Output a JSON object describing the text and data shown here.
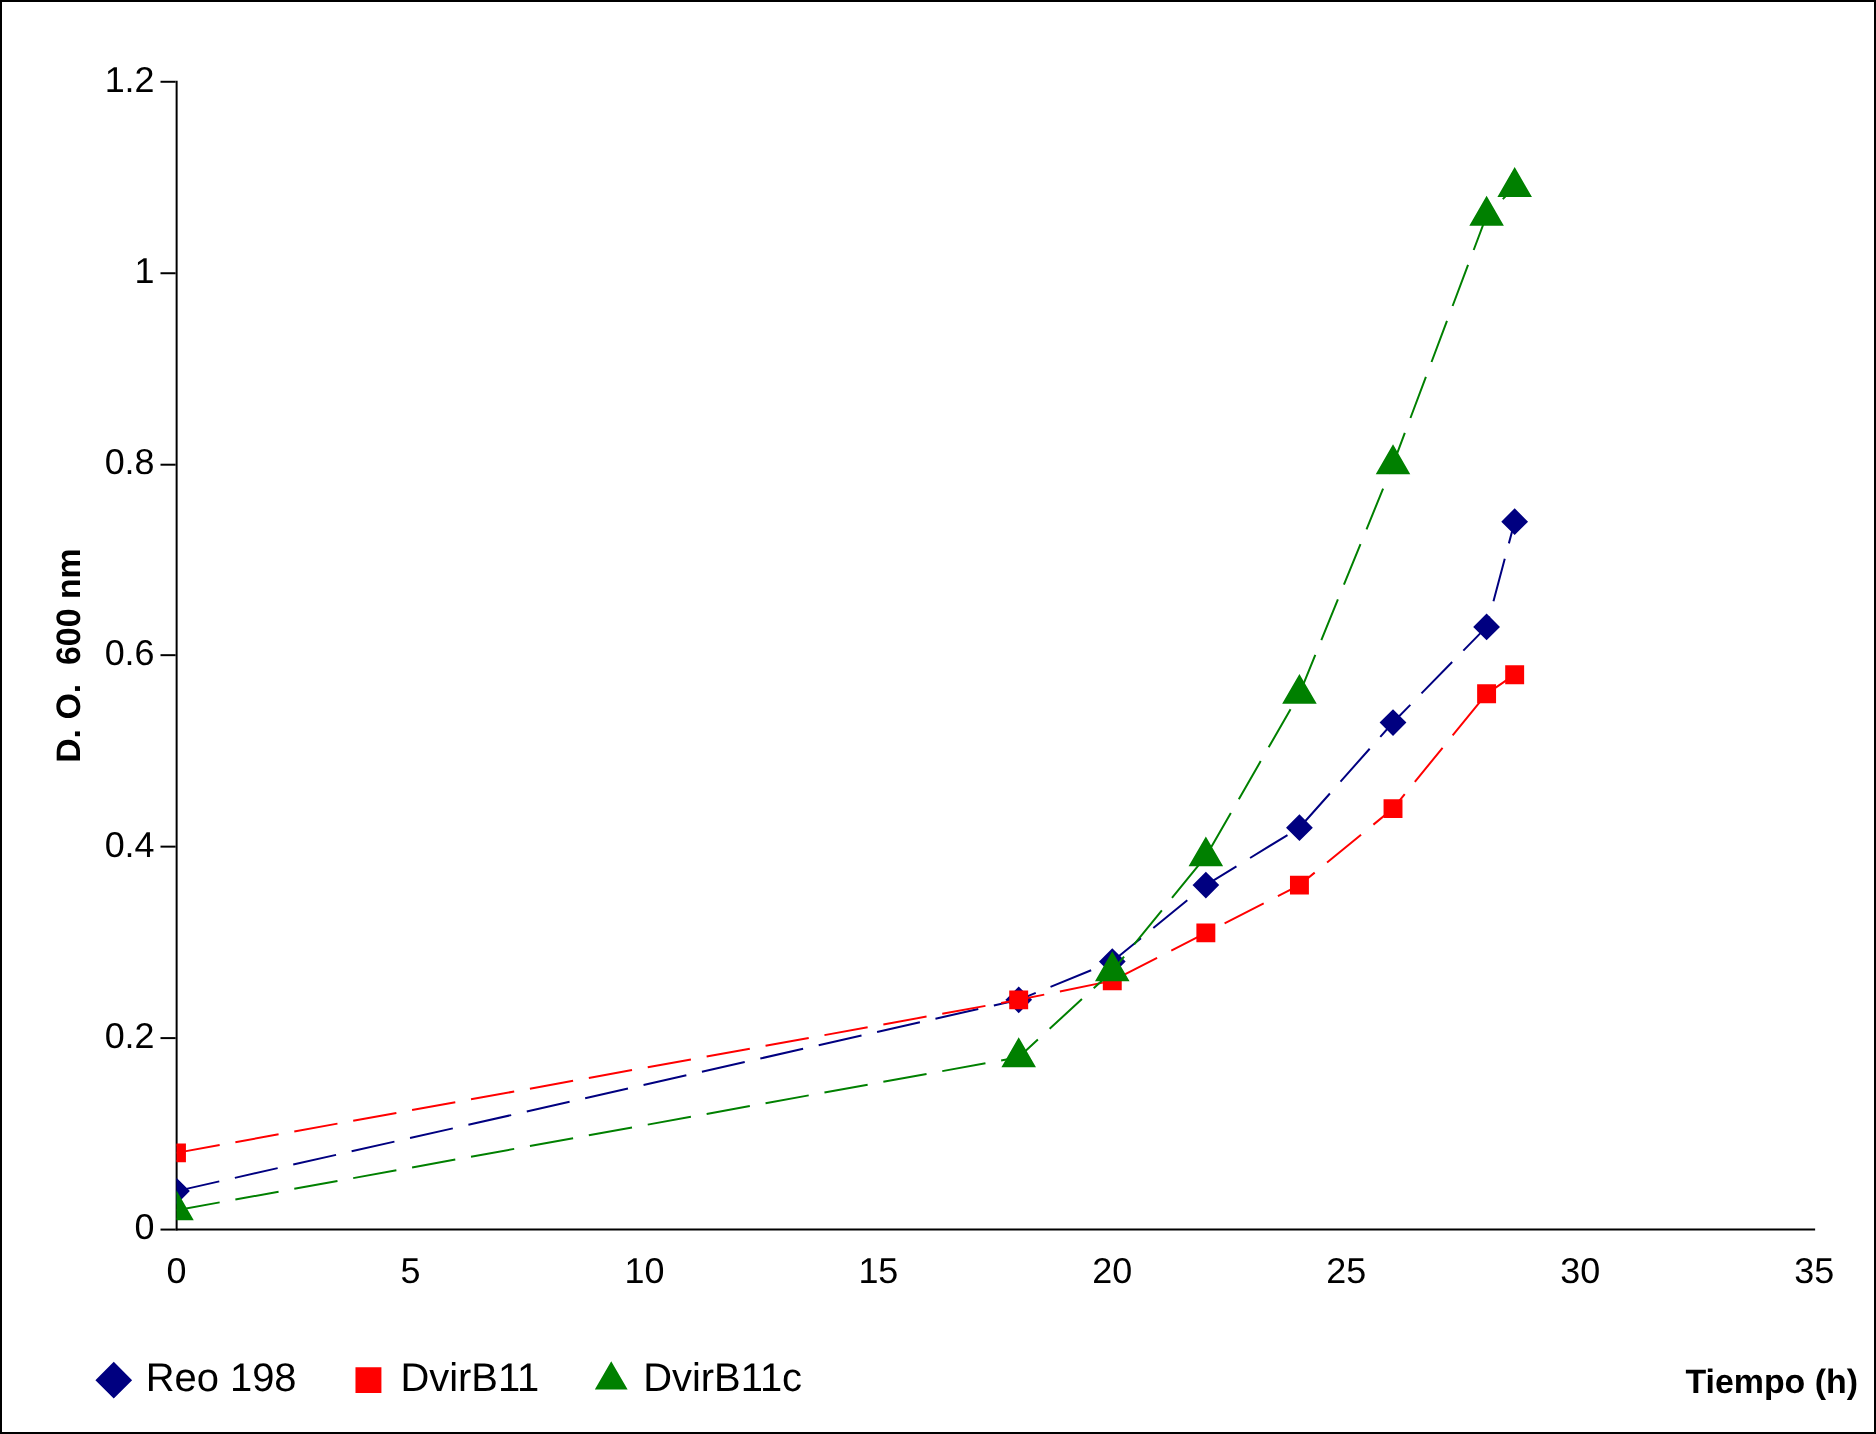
{
  "chart_data": {
    "type": "line",
    "xlabel": "Tiempo (h)",
    "ylabel": "D. O.  600 nm",
    "xlim": [
      0,
      35
    ],
    "xticks": [
      0,
      5,
      10,
      15,
      20,
      25,
      30,
      35
    ],
    "ylim": [
      0,
      1.2
    ],
    "yticks": [
      0,
      0.2,
      0.4,
      0.6,
      0.8,
      1,
      1.2
    ],
    "grid": false,
    "legend": "bottom",
    "line_style": "dashed",
    "series": [
      {
        "name": "Reo 198",
        "color": "#000080",
        "marker": "diamond",
        "x": [
          0,
          18,
          20,
          22,
          24,
          26,
          28,
          28.6
        ],
        "values": [
          0.04,
          0.24,
          0.28,
          0.36,
          0.42,
          0.53,
          0.63,
          0.74
        ]
      },
      {
        "name": "DvirB11",
        "color": "#ff0000",
        "marker": "square",
        "x": [
          0,
          18,
          20,
          22,
          24,
          26,
          28,
          28.6
        ],
        "values": [
          0.08,
          0.24,
          0.26,
          0.31,
          0.36,
          0.44,
          0.56,
          0.58
        ]
      },
      {
        "name": "DvirB11c",
        "color": "#008000",
        "marker": "triangle",
        "x": [
          0,
          18,
          20,
          22,
          24,
          26,
          28,
          28.6
        ],
        "values": [
          0.02,
          0.18,
          0.27,
          0.39,
          0.56,
          0.8,
          1.06,
          1.09
        ]
      }
    ]
  }
}
